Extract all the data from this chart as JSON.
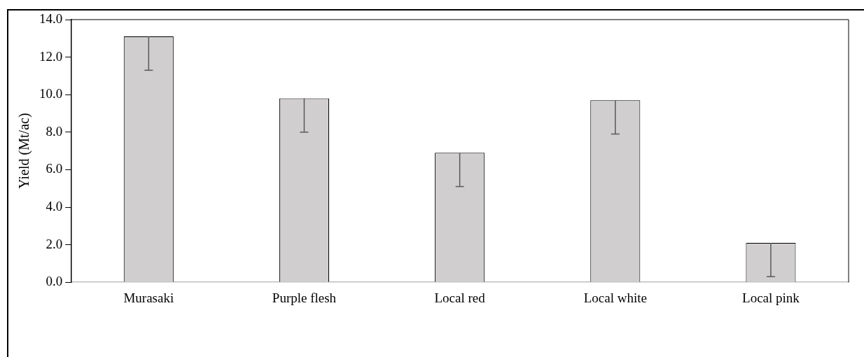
{
  "chart_data": {
    "type": "bar",
    "ylabel": "Yield (Mt/ac)",
    "categories": [
      "Murasaki",
      "Purple flesh",
      "Local red",
      "Local white",
      "Local pink"
    ],
    "values": [
      13.1,
      9.8,
      6.9,
      9.7,
      2.1
    ],
    "errors": [
      [
        11.3,
        13.1
      ],
      [
        8.0,
        9.8
      ],
      [
        5.1,
        6.9
      ],
      [
        7.9,
        9.7
      ],
      [
        0.3,
        2.1
      ]
    ],
    "color": "#d0cece",
    "ylim": [
      0,
      14
    ],
    "yticks": [
      {
        "value": 0,
        "label": "0.0"
      },
      {
        "value": 2,
        "label": "2.0"
      },
      {
        "value": 4,
        "label": "4.0"
      },
      {
        "value": 6,
        "label": "6.0"
      },
      {
        "value": 8,
        "label": "8.0"
      },
      {
        "value": 10,
        "label": "10.0"
      },
      {
        "value": 12,
        "label": "12.0"
      },
      {
        "value": 14,
        "label": "14.0"
      }
    ],
    "grid": false
  }
}
